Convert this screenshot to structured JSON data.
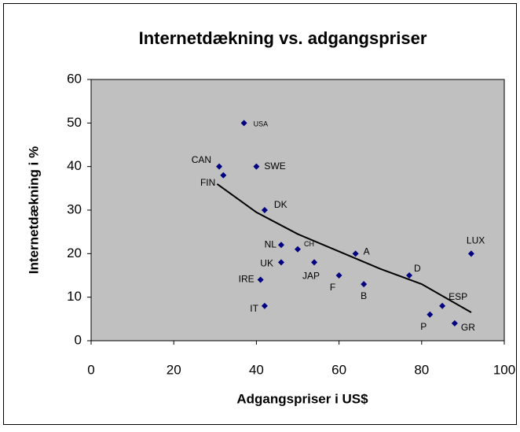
{
  "chart_data": {
    "type": "scatter",
    "title": "Internetdækning vs. adgangspriser",
    "x_label": "Adgangspriser i US$",
    "y_label": "Internetdækning i  %",
    "series": [
      {
        "color": "#000080",
        "point_labels": [
          "CAN",
          "FIN",
          "USA",
          "SWE",
          "DK",
          "NL",
          "CH",
          "UK",
          "JAP",
          "IRE",
          "F",
          "A",
          "B",
          "IT",
          "D",
          "LUX",
          "ESP",
          "P",
          "GR"
        ],
        "x": [
          31,
          32,
          37,
          40,
          42,
          46,
          50,
          46,
          54,
          41,
          60,
          64,
          66,
          42,
          77,
          92,
          85,
          82,
          88
        ],
        "values": [
          40,
          38,
          50,
          40,
          30,
          22,
          21,
          18,
          18,
          14,
          15,
          20,
          13,
          8,
          15,
          20,
          8,
          6,
          4
        ]
      }
    ],
    "trendline": {
      "color": "#000000",
      "x": [
        30.5,
        40,
        50,
        60,
        70,
        80,
        92
      ],
      "values": [
        36,
        29.5,
        24.5,
        20.5,
        16.5,
        13,
        6.5
      ]
    },
    "xlim": [
      0,
      100
    ],
    "xticks": [
      0,
      20,
      40,
      60,
      80,
      100
    ],
    "ylim": [
      0,
      60
    ],
    "yticks": [
      0,
      10,
      20,
      30,
      40,
      50,
      60
    ],
    "plot_background": "#c0c0c0"
  }
}
